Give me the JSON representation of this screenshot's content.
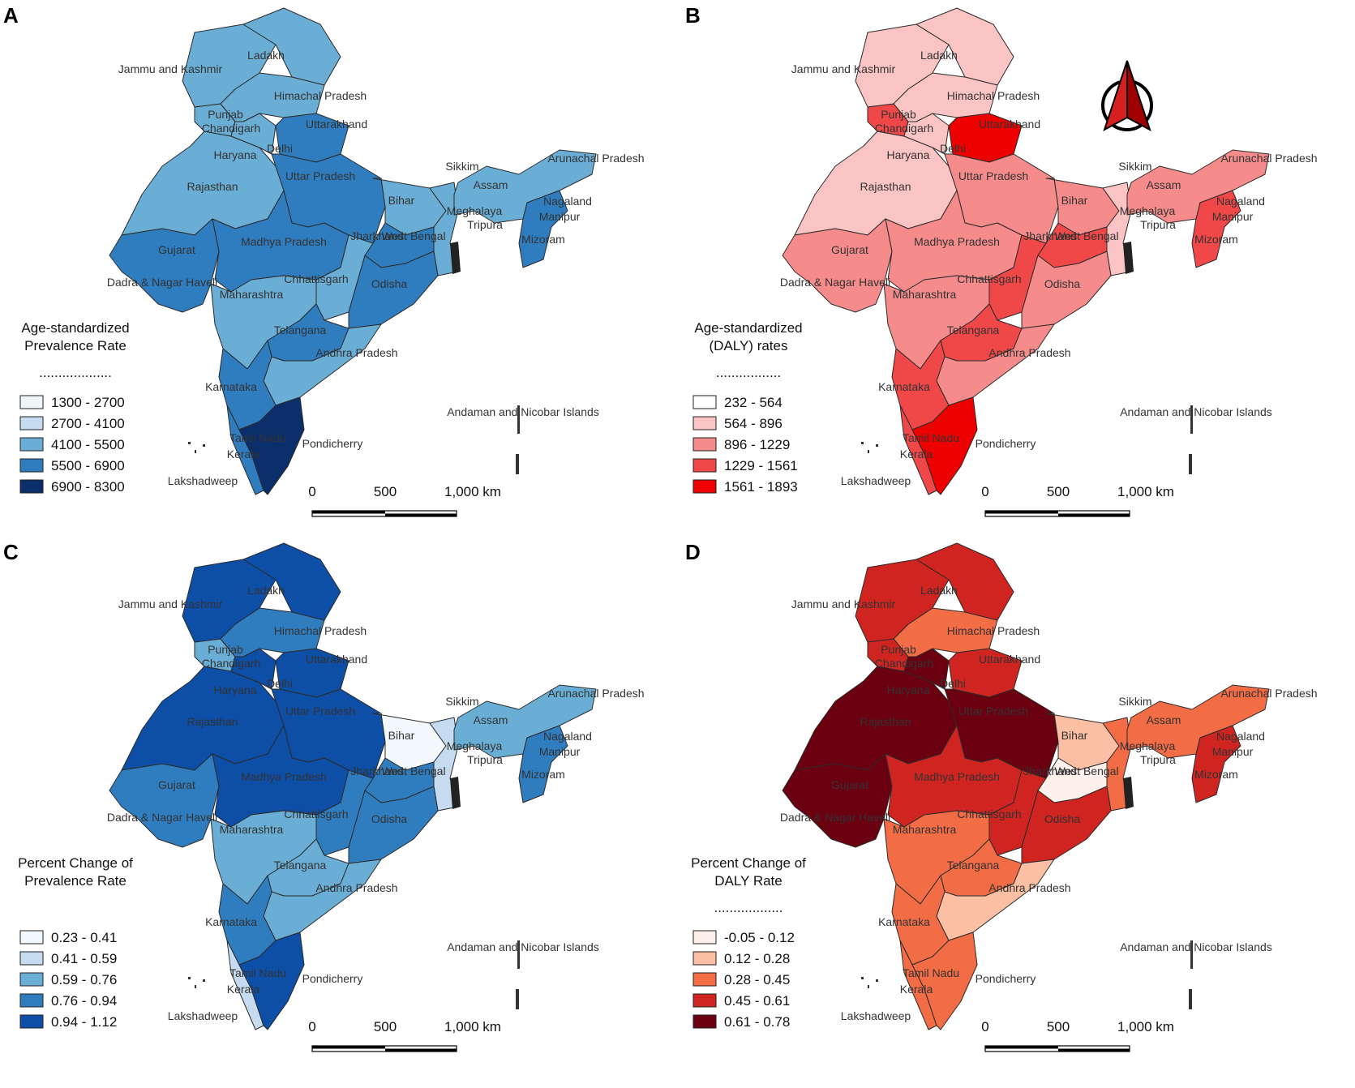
{
  "panels": [
    {
      "label": "A",
      "legend_title": [
        "Age-standardized",
        "Prevalence Rate"
      ],
      "legend_dots": "...................",
      "classes": [
        "1300 - 2700",
        "2700 - 4100",
        "4100 - 5500",
        "5500 - 6900",
        "6900 - 8300"
      ],
      "colors": [
        "#f0f5fb",
        "#c6dbef",
        "#6aaed6",
        "#2f7dbf",
        "#0b2f6b"
      ],
      "fills": {
        "ladakh": 2,
        "jk": 2,
        "hp": 2,
        "punjab": 2,
        "uttarakhand": 3,
        "haryana": 2,
        "rajasthan": 2,
        "up": 3,
        "bihar": 2,
        "gujarat": 3,
        "mp": 3,
        "jharkhand": 3,
        "wb": 2,
        "chhattisgarh": 2,
        "odisha": 3,
        "maharashtra": 2,
        "telangana": 3,
        "ap": 2,
        "karnataka": 3,
        "kerala": 3,
        "tn": 4,
        "ne": 2,
        "northeast_ne": 3
      },
      "scale": [
        "0",
        "500",
        "1,000 km"
      ],
      "north_arrow": false
    },
    {
      "label": "B",
      "legend_title": [
        "Age-standardized",
        "(DALY) rates"
      ],
      "legend_dots": ".................",
      "classes": [
        "232 - 564",
        "564 - 896",
        "896 - 1229",
        "1229 - 1561",
        "1561 - 1893"
      ],
      "colors": [
        "#ffffff",
        "#fbc4c4",
        "#f58b8b",
        "#f04848",
        "#ee0000"
      ],
      "fills": {
        "ladakh": 1,
        "jk": 1,
        "hp": 1,
        "punjab": 3,
        "uttarakhand": 4,
        "haryana": 1,
        "rajasthan": 1,
        "up": 2,
        "bihar": 2,
        "gujarat": 2,
        "mp": 2,
        "jharkhand": 3,
        "wb": 1,
        "chhattisgarh": 3,
        "odisha": 2,
        "maharashtra": 2,
        "telangana": 3,
        "ap": 2,
        "karnataka": 3,
        "kerala": 3,
        "tn": 4,
        "ne": 2,
        "northeast_ne": 3
      },
      "scale": [
        "0",
        "500",
        "1,000 km"
      ],
      "north_arrow": true
    },
    {
      "label": "C",
      "legend_title": [
        "Percent Change of",
        "Prevalence Rate"
      ],
      "legend_dots": "",
      "classes": [
        "0.23 - 0.41",
        "0.41 - 0.59",
        "0.59 - 0.76",
        "0.76 - 0.94",
        "0.94 - 1.12"
      ],
      "colors": [
        "#f3f8fd",
        "#c6dbef",
        "#6aaed6",
        "#2f7dbf",
        "#0d4ea6"
      ],
      "fills": {
        "ladakh": 4,
        "jk": 4,
        "hp": 3,
        "punjab": 2,
        "uttarakhand": 4,
        "haryana": 4,
        "rajasthan": 4,
        "up": 4,
        "bihar": 0,
        "gujarat": 3,
        "mp": 4,
        "jharkhand": 3,
        "wb": 1,
        "chhattisgarh": 3,
        "odisha": 3,
        "maharashtra": 2,
        "telangana": 2,
        "ap": 2,
        "karnataka": 3,
        "kerala": 1,
        "tn": 4,
        "ne": 2,
        "northeast_ne": 3
      },
      "scale": [
        "0",
        "500",
        "1,000 km"
      ],
      "north_arrow": false
    },
    {
      "label": "D",
      "legend_title": [
        "Percent Change of",
        "DALY Rate"
      ],
      "legend_dots": "..................",
      "classes": [
        "-0.05 - 0.12",
        "0.12 - 0.28",
        "0.28 - 0.45",
        "0.45 - 0.61",
        "0.61 - 0.78"
      ],
      "colors": [
        "#fef1ec",
        "#fbbfa3",
        "#f26c46",
        "#cf2420",
        "#6a0010"
      ],
      "fills": {
        "ladakh": 3,
        "jk": 3,
        "hp": 2,
        "punjab": 3,
        "uttarakhand": 3,
        "haryana": 4,
        "rajasthan": 4,
        "up": 4,
        "bihar": 1,
        "gujarat": 4,
        "mp": 3,
        "jharkhand": 0,
        "wb": 2,
        "chhattisgarh": 3,
        "odisha": 3,
        "maharashtra": 2,
        "telangana": 2,
        "ap": 1,
        "karnataka": 2,
        "kerala": 2,
        "tn": 2,
        "ne": 2,
        "northeast_ne": 3
      },
      "scale": [
        "0",
        "500",
        "1,000 km"
      ],
      "north_arrow": false
    }
  ],
  "state_labels": [
    "Ladakh",
    "Jammu and Kashmir",
    "Himachal Pradesh",
    "Punjab",
    "Chandigarh",
    "Uttarakhand",
    "Haryana",
    "Delhi",
    "Rajasthan",
    "Uttar Pradesh",
    "Sikkim",
    "Arunachal Pradesh",
    "Assam",
    "Bihar",
    "Meghalaya",
    "Nagaland",
    "Manipur",
    "Tripura",
    "West Bengal",
    "Mizoram",
    "Gujarat",
    "Madhya Pradesh",
    "Jharkhand",
    "Dadra & Nagar Haveli",
    "Chhattisgarh",
    "Odisha",
    "Maharashtra",
    "Telangana",
    "Andhra Pradesh",
    "Karnataka",
    "Andaman and Nicobar Islands",
    "Tamil Nadu",
    "Pondicherry",
    "Kerala",
    "Lakshadweep"
  ]
}
